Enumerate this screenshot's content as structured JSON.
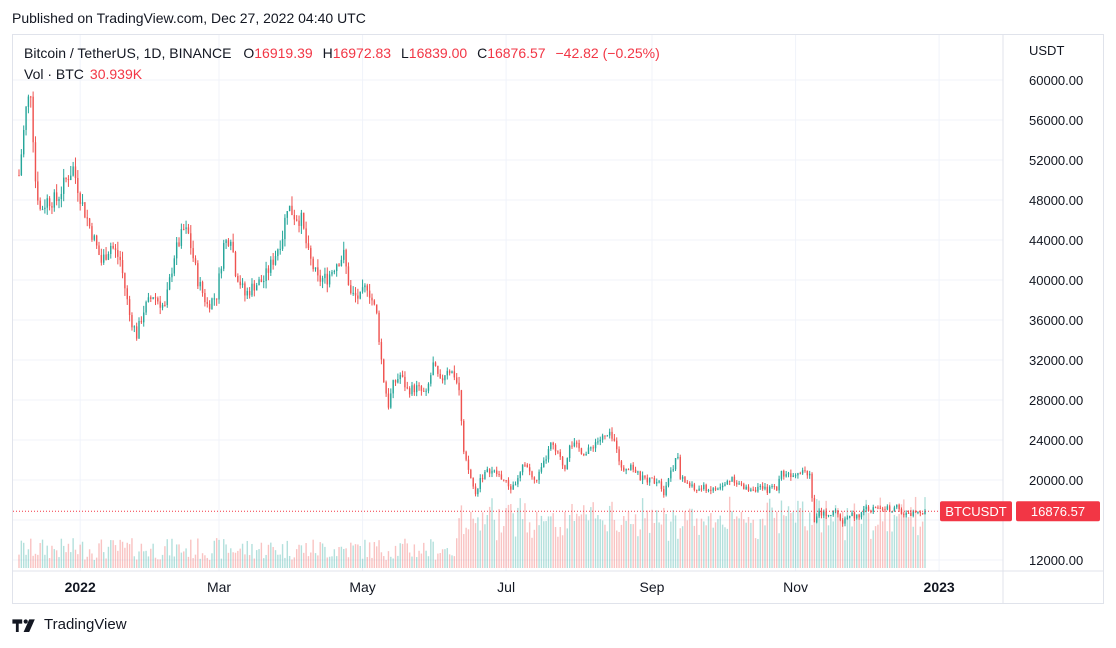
{
  "published": "Published on TradingView.com, Dec 27, 2022 04:40 UTC",
  "legend": {
    "symbol": "Bitcoin / TetherUS, 1D, BINANCE",
    "o_label": "O",
    "o_value": "16919.39",
    "h_label": "H",
    "h_value": "16972.83",
    "l_label": "L",
    "l_value": "16839.00",
    "c_label": "C",
    "c_value": "16876.57",
    "change": "−42.82 (−0.25%)",
    "vol_label": "Vol · BTC",
    "vol_value": "30.939K"
  },
  "footer": {
    "brand": "TradingView",
    "logo_icon": "tradingview-logo-icon"
  },
  "colors": {
    "up": "#26a69a",
    "down": "#ef5350",
    "price_line": "#f23645",
    "grid": "#f0f3fa"
  },
  "chart_data": {
    "type": "candlestick",
    "symbol": "BTCUSDT",
    "y_unit": "USDT",
    "ylim": [
      10500,
      62500
    ],
    "y_ticks": [
      12000,
      16000,
      20000,
      24000,
      28000,
      32000,
      36000,
      40000,
      44000,
      48000,
      52000,
      56000,
      60000
    ],
    "y_tick_labels": [
      "12000.00",
      "",
      "20000.00",
      "24000.00",
      "28000.00",
      "32000.00",
      "36000.00",
      "40000.00",
      "44000.00",
      "48000.00",
      "52000.00",
      "56000.00",
      "60000.00"
    ],
    "x_range": [
      "2021-12-06",
      "2022-12-26"
    ],
    "x_ticks": [
      {
        "date": "2022-01-01",
        "label": "2022",
        "bold": true
      },
      {
        "date": "2022-03-01",
        "label": "Mar",
        "bold": false
      },
      {
        "date": "2022-05-01",
        "label": "May",
        "bold": false
      },
      {
        "date": "2022-07-01",
        "label": "Jul",
        "bold": false
      },
      {
        "date": "2022-09-01",
        "label": "Sep",
        "bold": false
      },
      {
        "date": "2022-11-01",
        "label": "Nov",
        "bold": false
      },
      {
        "date": "2023-01-01",
        "label": "2023",
        "bold": true
      }
    ],
    "last_price": 16876.57,
    "last_price_label": "16876.57",
    "price_tag": "BTCUSDT",
    "close_keypoints": [
      [
        "2021-12-06",
        50500
      ],
      [
        "2021-12-09",
        57000
      ],
      [
        "2021-12-11",
        59000
      ],
      [
        "2021-12-13",
        50000
      ],
      [
        "2021-12-15",
        47000
      ],
      [
        "2021-12-18",
        48000
      ],
      [
        "2021-12-22",
        48000
      ],
      [
        "2021-12-27",
        50500
      ],
      [
        "2021-12-29",
        51200
      ],
      [
        "2022-01-02",
        47500
      ],
      [
        "2022-01-07",
        44000
      ],
      [
        "2022-01-10",
        41800
      ],
      [
        "2022-01-14",
        43500
      ],
      [
        "2022-01-18",
        42000
      ],
      [
        "2022-01-22",
        36500
      ],
      [
        "2022-01-25",
        34500
      ],
      [
        "2022-01-28",
        37000
      ],
      [
        "2022-02-01",
        38500
      ],
      [
        "2022-02-06",
        37200
      ],
      [
        "2022-02-10",
        42500
      ],
      [
        "2022-02-14",
        45000
      ],
      [
        "2022-02-16",
        44500
      ],
      [
        "2022-02-20",
        40000
      ],
      [
        "2022-02-24",
        37500
      ],
      [
        "2022-02-28",
        38500
      ],
      [
        "2022-03-03",
        43500
      ],
      [
        "2022-03-06",
        44500
      ],
      [
        "2022-03-08",
        41000
      ],
      [
        "2022-03-12",
        38500
      ],
      [
        "2022-03-16",
        39500
      ],
      [
        "2022-03-20",
        40000
      ],
      [
        "2022-03-24",
        42000
      ],
      [
        "2022-03-28",
        44500
      ],
      [
        "2022-03-30",
        47500
      ],
      [
        "2022-04-02",
        46500
      ],
      [
        "2022-04-05",
        46000
      ],
      [
        "2022-04-08",
        42500
      ],
      [
        "2022-04-12",
        40000
      ],
      [
        "2022-04-16",
        40200
      ],
      [
        "2022-04-20",
        41800
      ],
      [
        "2022-04-23",
        42500
      ],
      [
        "2022-04-26",
        38500
      ],
      [
        "2022-04-30",
        38200
      ],
      [
        "2022-05-03",
        39500
      ],
      [
        "2022-05-05",
        38000
      ],
      [
        "2022-05-07",
        36500
      ],
      [
        "2022-05-09",
        32000
      ],
      [
        "2022-05-10",
        30000
      ],
      [
        "2022-05-12",
        27500
      ],
      [
        "2022-05-14",
        29500
      ],
      [
        "2022-05-17",
        30500
      ],
      [
        "2022-05-20",
        29000
      ],
      [
        "2022-05-24",
        29200
      ],
      [
        "2022-05-28",
        28500
      ],
      [
        "2022-05-31",
        31500
      ],
      [
        "2022-06-03",
        29700
      ],
      [
        "2022-06-06",
        31200
      ],
      [
        "2022-06-09",
        30500
      ],
      [
        "2022-06-11",
        29000
      ],
      [
        "2022-06-13",
        22500
      ],
      [
        "2022-06-15",
        21000
      ],
      [
        "2022-06-18",
        18500
      ],
      [
        "2022-06-20",
        20200
      ],
      [
        "2022-06-24",
        21000
      ],
      [
        "2022-06-28",
        20500
      ],
      [
        "2022-07-03",
        19200
      ],
      [
        "2022-07-06",
        20000
      ],
      [
        "2022-07-09",
        21800
      ],
      [
        "2022-07-13",
        19800
      ],
      [
        "2022-07-16",
        21000
      ],
      [
        "2022-07-20",
        23500
      ],
      [
        "2022-07-23",
        22500
      ],
      [
        "2022-07-26",
        21200
      ],
      [
        "2022-07-28",
        23800
      ],
      [
        "2022-07-31",
        23300
      ],
      [
        "2022-08-04",
        22600
      ],
      [
        "2022-08-08",
        23800
      ],
      [
        "2022-08-11",
        24200
      ],
      [
        "2022-08-14",
        24400
      ],
      [
        "2022-08-17",
        23400
      ],
      [
        "2022-08-19",
        21000
      ],
      [
        "2022-08-23",
        21500
      ],
      [
        "2022-08-27",
        20200
      ],
      [
        "2022-08-31",
        20000
      ],
      [
        "2022-09-04",
        20000
      ],
      [
        "2022-09-06",
        18800
      ],
      [
        "2022-09-09",
        21000
      ],
      [
        "2022-09-12",
        22300
      ],
      [
        "2022-09-13",
        20200
      ],
      [
        "2022-09-16",
        19700
      ],
      [
        "2022-09-19",
        19000
      ],
      [
        "2022-09-23",
        19200
      ],
      [
        "2022-09-27",
        19000
      ],
      [
        "2022-10-01",
        19300
      ],
      [
        "2022-10-05",
        20300
      ],
      [
        "2022-10-10",
        19100
      ],
      [
        "2022-10-14",
        19200
      ],
      [
        "2022-10-20",
        19000
      ],
      [
        "2022-10-24",
        19300
      ],
      [
        "2022-10-26",
        20700
      ],
      [
        "2022-10-30",
        20600
      ],
      [
        "2022-11-04",
        21100
      ],
      [
        "2022-11-07",
        20600
      ],
      [
        "2022-11-08",
        18500
      ],
      [
        "2022-11-09",
        15800
      ],
      [
        "2022-11-11",
        16700
      ],
      [
        "2022-11-14",
        16600
      ],
      [
        "2022-11-18",
        16700
      ],
      [
        "2022-11-21",
        15800
      ],
      [
        "2022-11-24",
        16600
      ],
      [
        "2022-11-28",
        16200
      ],
      [
        "2022-11-30",
        17100
      ],
      [
        "2022-12-04",
        17100
      ],
      [
        "2022-12-08",
        17200
      ],
      [
        "2022-12-12",
        17100
      ],
      [
        "2022-12-14",
        17800
      ],
      [
        "2022-12-16",
        16600
      ],
      [
        "2022-12-19",
        16500
      ],
      [
        "2022-12-22",
        16850
      ],
      [
        "2022-12-26",
        16876
      ]
    ],
    "volume_scale_max": 1
  }
}
